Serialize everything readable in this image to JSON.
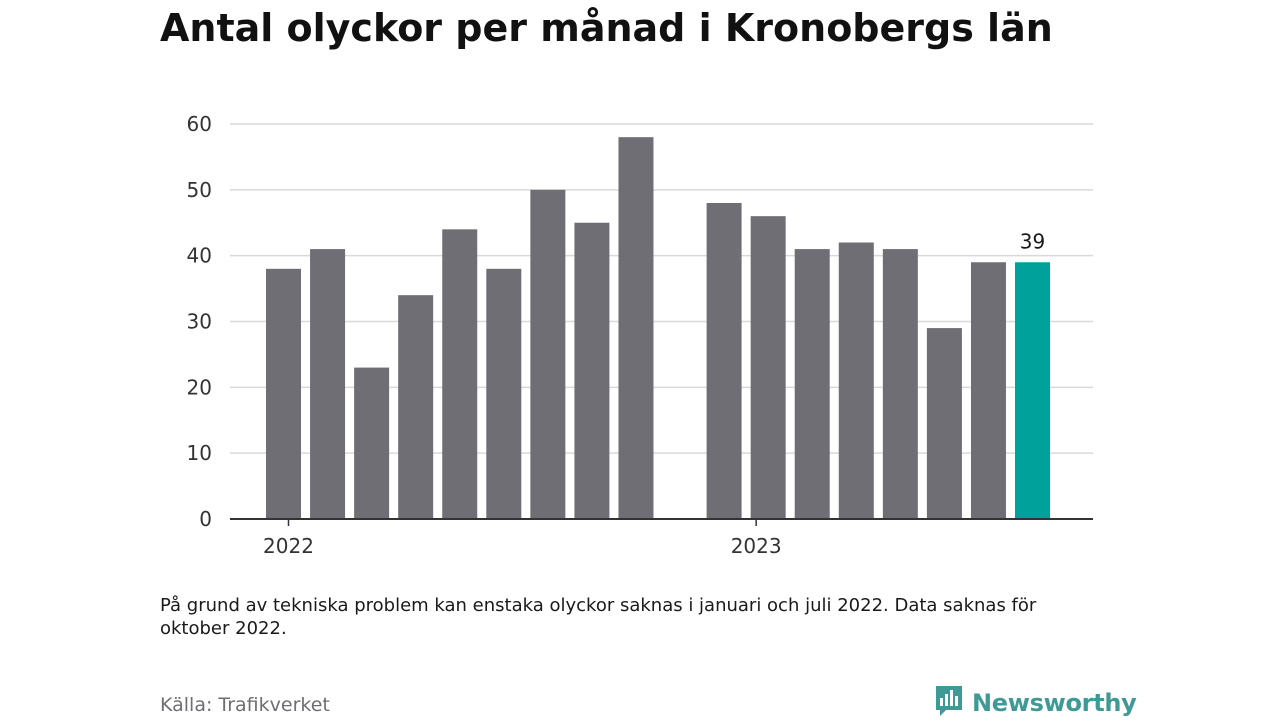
{
  "title": "Antal olyckor per månad i Kronobergs län",
  "footnote": "På grund av tekniska problem kan enstaka olyckor saknas i januari och juli 2022. Data saknas för oktober 2022.",
  "source": "Källa: Trafikverket",
  "brand": {
    "name": "Newsworthy",
    "icon": "newsworthy-logo-icon"
  },
  "colors": {
    "bar": "#6f6e74",
    "highlight": "#00a19a",
    "grid": "#d9d9d9",
    "axis": "#333333",
    "brand": "#3f9a95"
  },
  "chart_data": {
    "type": "bar",
    "title": "Antal olyckor per månad i Kronobergs län",
    "xlabel": "",
    "ylabel": "",
    "ylim": [
      0,
      60
    ],
    "yticks": [
      0,
      10,
      20,
      30,
      40,
      50,
      60
    ],
    "xtick_labels": [
      "2022",
      "2023"
    ],
    "grid": true,
    "categories": [
      "2022-01",
      "2022-02",
      "2022-03",
      "2022-04",
      "2022-05",
      "2022-06",
      "2022-07",
      "2022-08",
      "2022-09",
      "2022-10",
      "2022-11",
      "2022-12",
      "2023-01",
      "2023-02",
      "2023-03",
      "2023-04",
      "2023-05",
      "2023-06"
    ],
    "values": [
      38,
      41,
      23,
      34,
      44,
      38,
      50,
      45,
      58,
      null,
      48,
      46,
      41,
      42,
      41,
      29,
      39,
      39
    ],
    "highlight_index": 17,
    "data_labels": [
      {
        "index": 17,
        "text": "39"
      }
    ]
  }
}
